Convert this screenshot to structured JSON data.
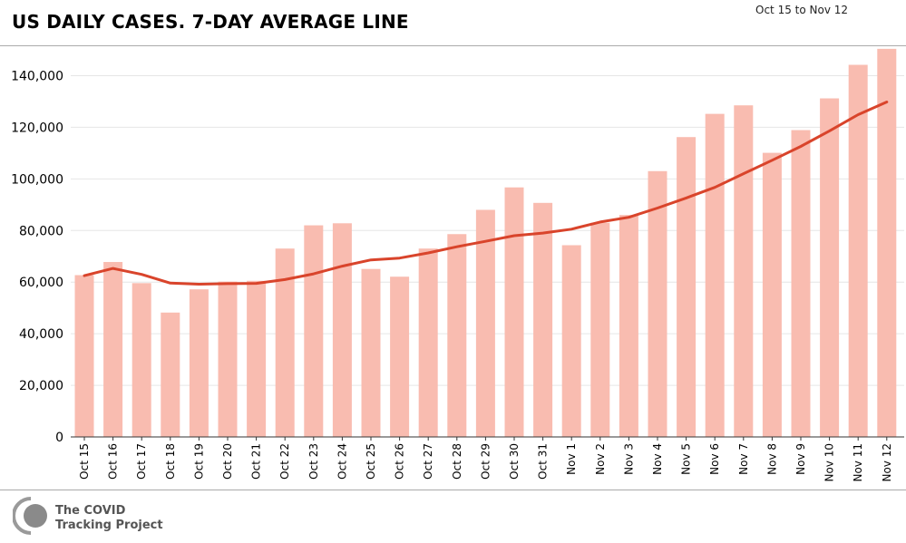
{
  "header": {
    "title": "US DAILY CASES. 7-DAY AVERAGE LINE",
    "date_range": "Oct 15 to Nov 12"
  },
  "footer": {
    "logo_line1": "The COVID",
    "logo_line2": "Tracking Project",
    "logo_icon": "covid-tracking-logo-icon"
  },
  "colors": {
    "bar": "#f9bcb0",
    "line": "#d9442b",
    "grid": "#e6e6e6"
  },
  "chart_data": {
    "type": "bar",
    "title": "US DAILY CASES. 7-DAY AVERAGE LINE",
    "xlabel": "",
    "ylabel": "",
    "ylim": [
      0,
      150000
    ],
    "yticks": [
      0,
      20000,
      40000,
      60000,
      80000,
      100000,
      120000,
      140000
    ],
    "ytick_labels": [
      "0",
      "20,000",
      "40,000",
      "60,000",
      "80,000",
      "100,000",
      "120,000",
      "140,000"
    ],
    "grid": true,
    "categories": [
      "Oct 15",
      "Oct 16",
      "Oct 17",
      "Oct 18",
      "Oct 19",
      "Oct 20",
      "Oct 21",
      "Oct 22",
      "Oct 23",
      "Oct 24",
      "Oct 25",
      "Oct 26",
      "Oct 27",
      "Oct 28",
      "Oct 29",
      "Oct 30",
      "Oct 31",
      "Nov 1",
      "Nov 2",
      "Nov 3",
      "Nov 4",
      "Nov 5",
      "Nov 6",
      "Nov 7",
      "Nov 8",
      "Nov 9",
      "Nov 10",
      "Nov 11",
      "Nov 12"
    ],
    "series": [
      {
        "type": "bar",
        "values": [
          62700,
          67800,
          59600,
          48200,
          57200,
          60200,
          60500,
          73000,
          82000,
          82800,
          65100,
          62100,
          73000,
          78600,
          88000,
          96700,
          90700,
          74300,
          83000,
          86000,
          103000,
          116200,
          125200,
          128500,
          110100,
          118900,
          131200,
          144200,
          150400
        ]
      },
      {
        "type": "line",
        "values": [
          62500,
          65300,
          63000,
          59600,
          59200,
          59400,
          59500,
          61000,
          63200,
          66200,
          68600,
          69300,
          71300,
          73700,
          75800,
          78000,
          79000,
          80500,
          83300,
          85100,
          88700,
          92600,
          96700,
          102000,
          107200,
          112600,
          118600,
          124900,
          129800
        ]
      }
    ]
  }
}
